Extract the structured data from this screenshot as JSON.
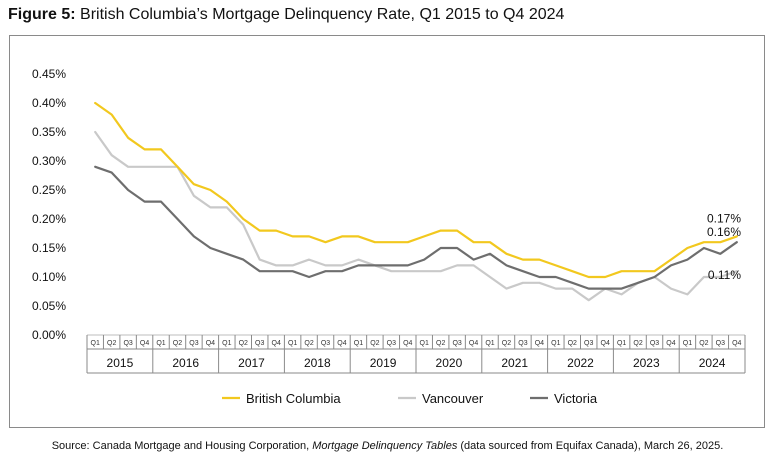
{
  "header": {
    "figure_label": "Figure 5:",
    "figure_title": "British Columbia’s Mortgage Delinquency Rate, Q1 2015 to Q4 2024"
  },
  "source": {
    "prefix": "Source: Canada Mortgage and Housing Corporation, ",
    "publication": "Mortgage Delinquency Tables",
    "suffix": " (data sourced from Equifax Canada), March 26, 2025."
  },
  "colors": {
    "british_columbia": "#F2C81E",
    "vancouver": "#C9C9C9",
    "victoria": "#6E6E6E",
    "axis": "#8A8A8A",
    "grid": "#BDBDBD"
  },
  "chart_data": {
    "type": "line",
    "title": "British Columbia’s Mortgage Delinquency Rate, Q1 2015 to Q4 2024",
    "xlabel": "",
    "ylabel": "",
    "ylim": [
      0,
      0.45
    ],
    "y_ticks": [
      "0.00%",
      "0.05%",
      "0.10%",
      "0.15%",
      "0.20%",
      "0.25%",
      "0.30%",
      "0.35%",
      "0.40%",
      "0.45%"
    ],
    "years": [
      "2015",
      "2016",
      "2017",
      "2018",
      "2019",
      "2020",
      "2021",
      "2022",
      "2023",
      "2024"
    ],
    "quarters": [
      "Q1",
      "Q2",
      "Q3",
      "Q4"
    ],
    "grid": false,
    "legend_position": "bottom",
    "series": [
      {
        "name": "British Columbia",
        "end_label": "0.17%",
        "values": [
          0.4,
          0.38,
          0.34,
          0.32,
          0.32,
          0.29,
          0.26,
          0.25,
          0.23,
          0.2,
          0.18,
          0.18,
          0.17,
          0.17,
          0.16,
          0.17,
          0.17,
          0.16,
          0.16,
          0.16,
          0.17,
          0.18,
          0.18,
          0.16,
          0.16,
          0.14,
          0.13,
          0.13,
          0.12,
          0.11,
          0.1,
          0.1,
          0.11,
          0.11,
          0.11,
          0.13,
          0.15,
          0.16,
          0.16,
          0.17
        ]
      },
      {
        "name": "Vancouver",
        "end_label": "0.11%",
        "values": [
          0.35,
          0.31,
          0.29,
          0.29,
          0.29,
          0.29,
          0.24,
          0.22,
          0.22,
          0.19,
          0.13,
          0.12,
          0.12,
          0.13,
          0.12,
          0.12,
          0.13,
          0.12,
          0.11,
          0.11,
          0.11,
          0.11,
          0.12,
          0.12,
          0.1,
          0.08,
          0.09,
          0.09,
          0.08,
          0.08,
          0.06,
          0.08,
          0.07,
          0.09,
          0.1,
          0.08,
          0.07,
          0.1,
          0.1,
          0.11
        ]
      },
      {
        "name": "Victoria",
        "end_label": "0.16%",
        "values": [
          0.29,
          0.28,
          0.25,
          0.23,
          0.23,
          0.2,
          0.17,
          0.15,
          0.14,
          0.13,
          0.11,
          0.11,
          0.11,
          0.1,
          0.11,
          0.11,
          0.12,
          0.12,
          0.12,
          0.12,
          0.13,
          0.15,
          0.15,
          0.13,
          0.14,
          0.12,
          0.11,
          0.1,
          0.1,
          0.09,
          0.08,
          0.08,
          0.08,
          0.09,
          0.1,
          0.12,
          0.13,
          0.15,
          0.14,
          0.16
        ]
      }
    ]
  }
}
